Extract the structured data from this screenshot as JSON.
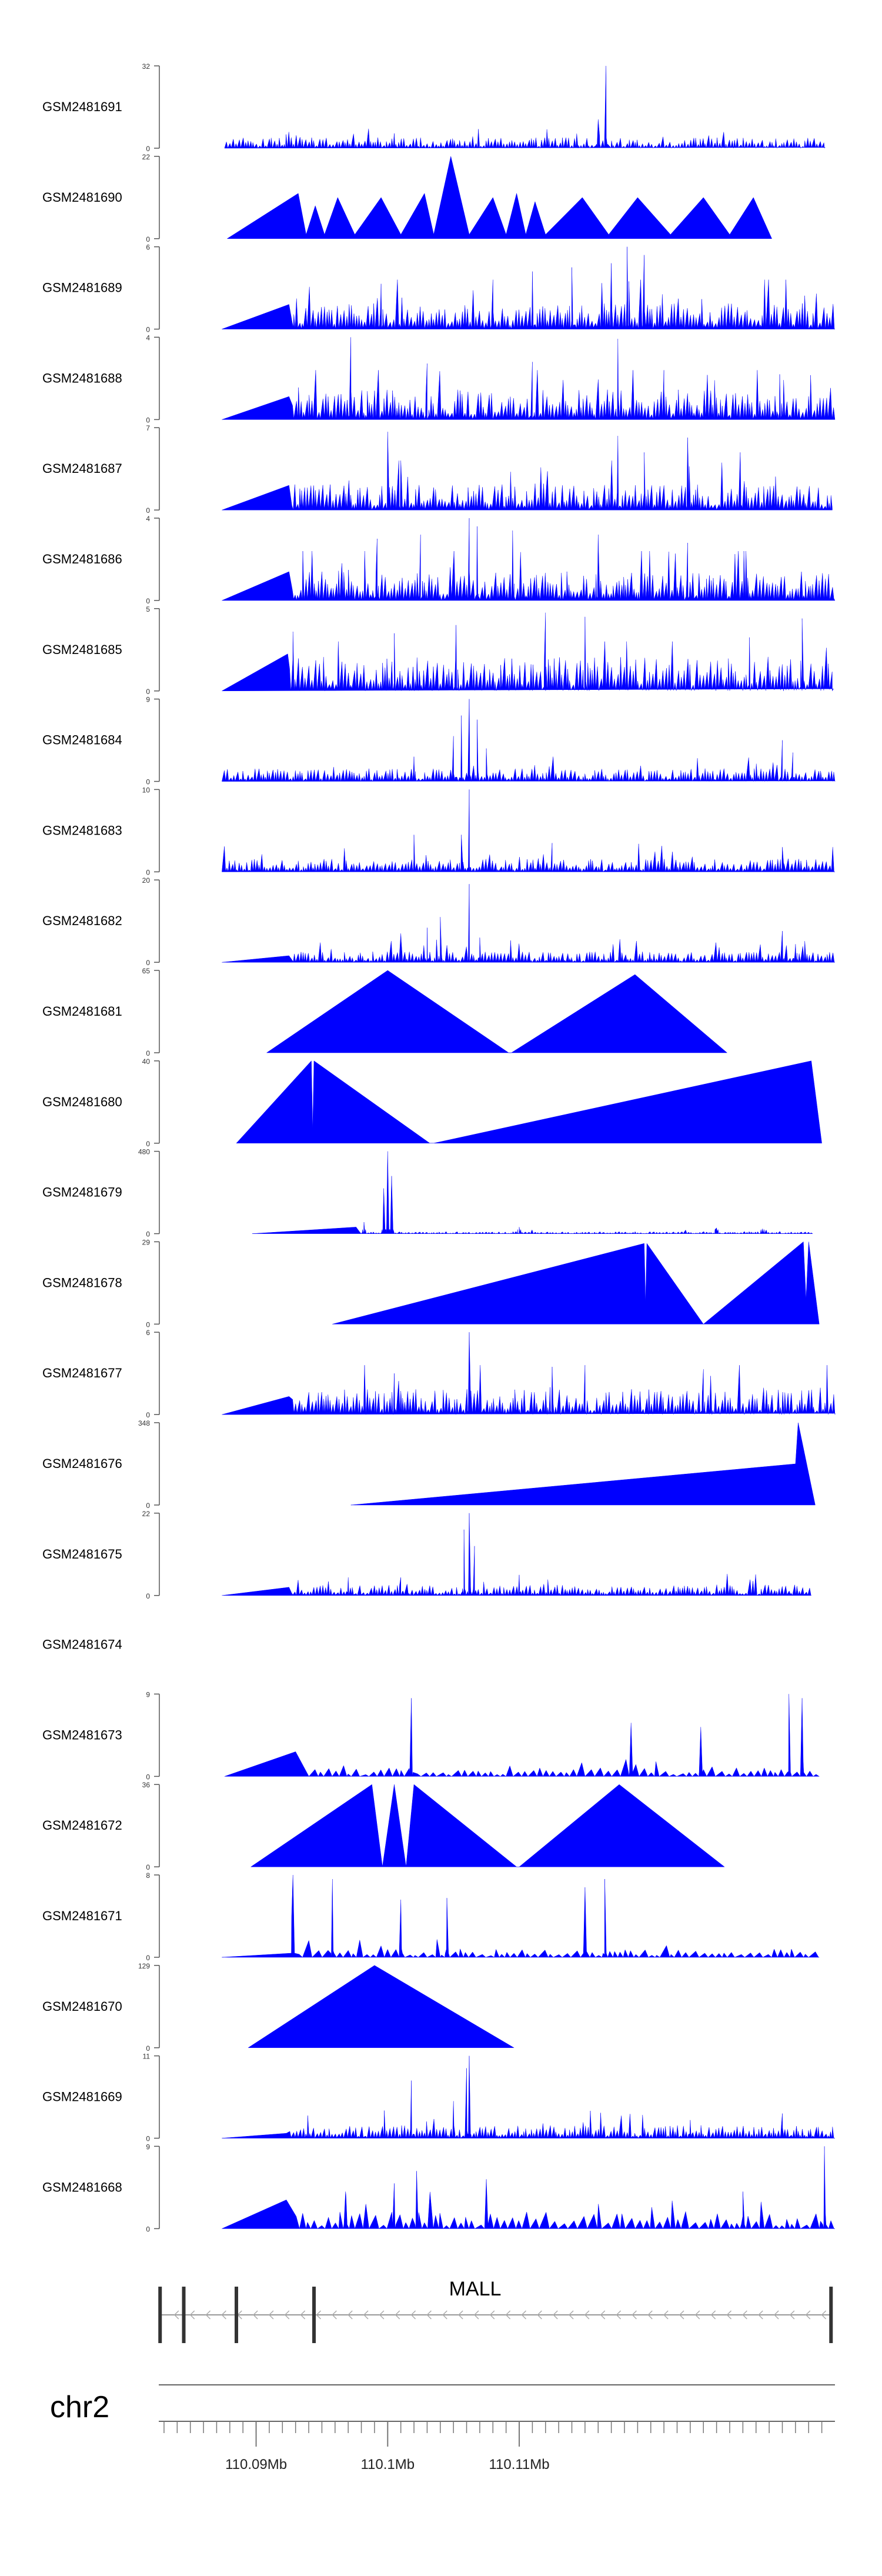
{
  "chart_data": {
    "type": "area",
    "title": "",
    "xlabel": "",
    "x_range_mb": [
      110.0826,
      110.134
    ],
    "axis": {
      "chromosome": "chr2",
      "ticks": [
        {
          "pos": 110.09,
          "label": "110.09Mb"
        },
        {
          "pos": 110.1,
          "label": "110.1Mb"
        },
        {
          "pos": 110.11,
          "label": "110.11Mb"
        }
      ],
      "minor_ticks": [
        110.083,
        110.084,
        110.085,
        110.086,
        110.087,
        110.088,
        110.089,
        110.09,
        110.091,
        110.092,
        110.093,
        110.094,
        110.095,
        110.096,
        110.097,
        110.098,
        110.099,
        110.1,
        110.101,
        110.102,
        110.103,
        110.104,
        110.105,
        110.106,
        110.107,
        110.108,
        110.109,
        110.11,
        110.111,
        110.112,
        110.113,
        110.114,
        110.115,
        110.116,
        110.117,
        110.118,
        110.119,
        110.12,
        110.121,
        110.122,
        110.123,
        110.124,
        110.125,
        110.126,
        110.127,
        110.128,
        110.129,
        110.13,
        110.131,
        110.132,
        110.133
      ]
    },
    "gene": {
      "name": "MALL",
      "strand": "-",
      "start": 110.0826,
      "end": 110.1338,
      "exons": [
        110.0827,
        110.0845,
        110.0885,
        110.0944,
        110.1337
      ]
    },
    "series": [
      {
        "name": "GSM2481691",
        "ymax": 32,
        "ymin": 0,
        "kind": "dense",
        "start": 110.0876,
        "end": 110.1332,
        "baseline": 0.05,
        "spikes": [
          {
            "x": 110.1166,
            "h": 1.0
          },
          {
            "x": 110.116,
            "h": 0.35
          },
          {
            "x": 110.1005,
            "h": 0.18
          }
        ]
      },
      {
        "name": "GSM2481690",
        "ymax": 22,
        "ymin": 0,
        "kind": "sparse",
        "points": [
          [
            110.0878,
            0
          ],
          [
            110.0932,
            0.55
          ],
          [
            110.0938,
            0.05
          ],
          [
            110.0945,
            0.4
          ],
          [
            110.0952,
            0.05
          ],
          [
            110.0962,
            0.5
          ],
          [
            110.0975,
            0.05
          ],
          [
            110.0995,
            0.5
          ],
          [
            110.101,
            0.05
          ],
          [
            110.1028,
            0.55
          ],
          [
            110.1035,
            0.05
          ],
          [
            110.1048,
            1.0
          ],
          [
            110.1062,
            0.05
          ],
          [
            110.108,
            0.5
          ],
          [
            110.109,
            0.05
          ],
          [
            110.1098,
            0.55
          ],
          [
            110.1105,
            0.05
          ],
          [
            110.1112,
            0.45
          ],
          [
            110.112,
            0.05
          ],
          [
            110.1148,
            0.5
          ],
          [
            110.1168,
            0.05
          ],
          [
            110.119,
            0.5
          ],
          [
            110.1215,
            0.05
          ],
          [
            110.124,
            0.5
          ],
          [
            110.126,
            0.05
          ],
          [
            110.1278,
            0.5
          ],
          [
            110.1292,
            0
          ]
        ]
      },
      {
        "name": "GSM2481689",
        "ymax": 6,
        "ymin": 0,
        "kind": "dense",
        "start": 110.0874,
        "end": 110.134,
        "ramp_end": 110.0925,
        "ramp_h": 0.3,
        "baseline": 0.12,
        "spikes": [
          {
            "x": 110.1182,
            "h": 1.0
          },
          {
            "x": 110.1195,
            "h": 0.9
          },
          {
            "x": 110.117,
            "h": 0.8
          },
          {
            "x": 110.114,
            "h": 0.75
          },
          {
            "x": 110.111,
            "h": 0.7
          },
          {
            "x": 110.108,
            "h": 0.6
          },
          {
            "x": 110.0995,
            "h": 0.55
          }
        ]
      },
      {
        "name": "GSM2481688",
        "ymax": 4,
        "ymin": 0,
        "kind": "dense",
        "start": 110.0874,
        "end": 110.134,
        "ramp_end": 110.0925,
        "ramp_h": 0.28,
        "baseline": 0.14,
        "spikes": [
          {
            "x": 110.0972,
            "h": 1.0
          },
          {
            "x": 110.1175,
            "h": 0.98
          },
          {
            "x": 110.111,
            "h": 0.7
          },
          {
            "x": 110.103,
            "h": 0.68
          },
          {
            "x": 110.121,
            "h": 0.6
          },
          {
            "x": 110.1298,
            "h": 0.55
          }
        ]
      },
      {
        "name": "GSM2481687",
        "ymax": 7,
        "ymin": 0,
        "kind": "dense",
        "start": 110.0874,
        "end": 110.1338,
        "ramp_end": 110.0925,
        "ramp_h": 0.3,
        "baseline": 0.12,
        "spikes": [
          {
            "x": 110.1,
            "h": 0.95
          },
          {
            "x": 110.1175,
            "h": 0.9
          },
          {
            "x": 110.1228,
            "h": 0.88
          },
          {
            "x": 110.1195,
            "h": 0.7
          },
          {
            "x": 110.1268,
            "h": 0.7
          },
          {
            "x": 110.101,
            "h": 0.6
          }
        ]
      },
      {
        "name": "GSM2481686",
        "ymax": 4,
        "ymin": 0,
        "kind": "dense",
        "start": 110.0874,
        "end": 110.134,
        "ramp_end": 110.0925,
        "ramp_h": 0.35,
        "baseline": 0.14,
        "spikes": [
          {
            "x": 110.1062,
            "h": 1.0
          },
          {
            "x": 110.1068,
            "h": 0.9
          },
          {
            "x": 110.1095,
            "h": 0.85
          },
          {
            "x": 110.116,
            "h": 0.8
          },
          {
            "x": 110.1025,
            "h": 0.8
          },
          {
            "x": 110.0992,
            "h": 0.75
          },
          {
            "x": 110.1228,
            "h": 0.7
          }
        ]
      },
      {
        "name": "GSM2481685",
        "ymax": 5,
        "ymin": 0,
        "kind": "dense",
        "start": 110.0874,
        "end": 110.1338,
        "ramp_end": 110.0924,
        "ramp_h": 0.45,
        "baseline": 0.16,
        "spikes": [
          {
            "x": 110.112,
            "h": 0.95
          },
          {
            "x": 110.115,
            "h": 0.9
          },
          {
            "x": 110.1315,
            "h": 0.88
          },
          {
            "x": 110.1052,
            "h": 0.8
          },
          {
            "x": 110.0928,
            "h": 0.72
          },
          {
            "x": 110.1005,
            "h": 0.7
          },
          {
            "x": 110.1275,
            "h": 0.65
          }
        ]
      },
      {
        "name": "GSM2481684",
        "ymax": 9,
        "ymin": 0,
        "kind": "dense",
        "start": 110.0874,
        "end": 110.134,
        "baseline": 0.06,
        "spikes": [
          {
            "x": 110.1062,
            "h": 1.0
          },
          {
            "x": 110.1056,
            "h": 0.8
          },
          {
            "x": 110.1068,
            "h": 0.75
          },
          {
            "x": 110.105,
            "h": 0.55
          },
          {
            "x": 110.1075,
            "h": 0.4
          },
          {
            "x": 110.13,
            "h": 0.5
          },
          {
            "x": 110.1308,
            "h": 0.35
          },
          {
            "x": 110.102,
            "h": 0.3
          }
        ]
      },
      {
        "name": "GSM2481683",
        "ymax": 10,
        "ymin": 0,
        "kind": "dense",
        "start": 110.0874,
        "end": 110.134,
        "baseline": 0.06,
        "spikes": [
          {
            "x": 110.1062,
            "h": 1.0
          },
          {
            "x": 110.102,
            "h": 0.45
          },
          {
            "x": 110.1056,
            "h": 0.45
          },
          {
            "x": 110.1125,
            "h": 0.35
          },
          {
            "x": 110.13,
            "h": 0.3
          }
        ]
      },
      {
        "name": "GSM2481682",
        "ymax": 20,
        "ymin": 0,
        "kind": "dense",
        "start": 110.0874,
        "end": 110.134,
        "ramp_end": 110.0925,
        "ramp_h": 0.08,
        "baseline": 0.05,
        "spikes": [
          {
            "x": 110.1062,
            "h": 0.95
          },
          {
            "x": 110.104,
            "h": 0.55
          },
          {
            "x": 110.103,
            "h": 0.42
          },
          {
            "x": 110.101,
            "h": 0.35
          },
          {
            "x": 110.107,
            "h": 0.3
          },
          {
            "x": 110.13,
            "h": 0.38
          },
          {
            "x": 110.131,
            "h": 0.22
          }
        ]
      },
      {
        "name": "GSM2481681",
        "ymax": 65,
        "ymin": 0,
        "kind": "sparse",
        "points": [
          [
            110.0908,
            0
          ],
          [
            110.1,
            1.0
          ],
          [
            110.1092,
            0
          ],
          [
            110.1094,
            0
          ],
          [
            110.1188,
            0.95
          ],
          [
            110.1258,
            0
          ]
        ]
      },
      {
        "name": "GSM2481680",
        "ymax": 40,
        "ymin": 0,
        "kind": "sparse",
        "points": [
          [
            110.0885,
            0
          ],
          [
            110.0942,
            1.0
          ],
          [
            110.0943,
            0.15
          ],
          [
            110.0944,
            1.0
          ],
          [
            110.1032,
            0
          ],
          [
            110.1035,
            0
          ],
          [
            110.1322,
            1.0
          ],
          [
            110.133,
            0
          ]
        ]
      },
      {
        "name": "GSM2481679",
        "ymax": 480,
        "ymin": 0,
        "kind": "dense",
        "start": 110.0897,
        "end": 110.1323,
        "ramp_end": 110.0976,
        "ramp_h": 0.08,
        "baseline": 0.01,
        "spikes": [
          {
            "x": 110.1,
            "h": 1.0
          },
          {
            "x": 110.1003,
            "h": 0.7
          },
          {
            "x": 110.0997,
            "h": 0.55
          },
          {
            "x": 110.0982,
            "h": 0.14
          },
          {
            "x": 110.11,
            "h": 0.08
          },
          {
            "x": 110.125,
            "h": 0.07
          },
          {
            "x": 110.1285,
            "h": 0.06
          }
        ]
      },
      {
        "name": "GSM2481678",
        "ymax": 29,
        "ymin": 0,
        "kind": "sparse",
        "points": [
          [
            110.0958,
            0
          ],
          [
            110.1195,
            0.98
          ],
          [
            110.1196,
            0.25
          ],
          [
            110.1197,
            0.98
          ],
          [
            110.124,
            0
          ],
          [
            110.1316,
            1.0
          ],
          [
            110.1318,
            0.3
          ],
          [
            110.132,
            1.0
          ],
          [
            110.1328,
            0
          ]
        ]
      },
      {
        "name": "GSM2481677",
        "ymax": 6,
        "ymin": 0,
        "kind": "dense",
        "start": 110.0874,
        "end": 110.134,
        "ramp_end": 110.0925,
        "ramp_h": 0.22,
        "baseline": 0.12,
        "spikes": [
          {
            "x": 110.1062,
            "h": 1.0
          },
          {
            "x": 110.115,
            "h": 0.6
          },
          {
            "x": 110.1125,
            "h": 0.58
          },
          {
            "x": 110.124,
            "h": 0.55
          },
          {
            "x": 110.1005,
            "h": 0.5
          }
        ]
      },
      {
        "name": "GSM2481676",
        "ymax": 348,
        "ymin": 0,
        "kind": "sparse",
        "points": [
          [
            110.0972,
            0
          ],
          [
            110.131,
            0.5
          ],
          [
            110.1312,
            1.0
          ],
          [
            110.1325,
            0
          ]
        ]
      },
      {
        "name": "GSM2481675",
        "ymax": 22,
        "ymin": 0,
        "kind": "dense",
        "start": 110.0874,
        "end": 110.1322,
        "ramp_end": 110.0925,
        "ramp_h": 0.1,
        "baseline": 0.05,
        "spikes": [
          {
            "x": 110.1062,
            "h": 1.0
          },
          {
            "x": 110.1058,
            "h": 0.8
          },
          {
            "x": 110.1066,
            "h": 0.6
          },
          {
            "x": 110.11,
            "h": 0.25
          },
          {
            "x": 110.097,
            "h": 0.22
          },
          {
            "x": 110.101,
            "h": 0.22
          }
        ]
      },
      {
        "name": "GSM2481674",
        "ymax": null,
        "ymin": null,
        "kind": "empty"
      },
      {
        "name": "GSM2481673",
        "ymax": 9,
        "ymin": 0,
        "kind": "sparse_spiky",
        "start": 110.0876,
        "end": 110.1328,
        "ramp_end": 110.093,
        "ramp_h": 0.3,
        "baseline": 0.02,
        "spikes": [
          {
            "x": 110.1018,
            "h": 0.95
          },
          {
            "x": 110.1305,
            "h": 1.0
          },
          {
            "x": 110.1315,
            "h": 0.95
          },
          {
            "x": 110.1185,
            "h": 0.65
          },
          {
            "x": 110.1238,
            "h": 0.6
          }
        ]
      },
      {
        "name": "GSM2481672",
        "ymax": 36,
        "ymin": 0,
        "kind": "sparse",
        "points": [
          [
            110.0896,
            0
          ],
          [
            110.0988,
            1.0
          ],
          [
            110.0996,
            0
          ],
          [
            110.1005,
            1.0
          ],
          [
            110.1014,
            0
          ],
          [
            110.102,
            1.0
          ],
          [
            110.1098,
            0
          ],
          [
            110.11,
            0
          ],
          [
            110.1176,
            1.0
          ],
          [
            110.1256,
            0
          ]
        ]
      },
      {
        "name": "GSM2481671",
        "ymax": 8,
        "ymin": 0,
        "kind": "sparse_spiky",
        "start": 110.0874,
        "end": 110.1328,
        "ramp_end": 110.0927,
        "ramp_h": 0.5,
        "baseline": 0.02,
        "spikes": [
          {
            "x": 110.0928,
            "h": 1.0
          },
          {
            "x": 110.0958,
            "h": 0.95
          },
          {
            "x": 110.1165,
            "h": 0.95
          },
          {
            "x": 110.115,
            "h": 0.85
          },
          {
            "x": 110.101,
            "h": 0.7
          },
          {
            "x": 110.1045,
            "h": 0.72
          }
        ]
      },
      {
        "name": "GSM2481670",
        "ymax": 129,
        "ymin": 0,
        "kind": "sparse",
        "points": [
          [
            110.0894,
            0
          ],
          [
            110.099,
            1.0
          ],
          [
            110.1096,
            0
          ]
        ]
      },
      {
        "name": "GSM2481669",
        "ymax": 11,
        "ymin": 0,
        "kind": "dense",
        "start": 110.0874,
        "end": 110.134,
        "ramp_end": 110.0923,
        "ramp_h": 0.06,
        "baseline": 0.06,
        "spikes": [
          {
            "x": 110.1062,
            "h": 1.0
          },
          {
            "x": 110.106,
            "h": 0.85
          },
          {
            "x": 110.1018,
            "h": 0.7
          },
          {
            "x": 110.105,
            "h": 0.45
          },
          {
            "x": 110.13,
            "h": 0.3
          },
          {
            "x": 110.123,
            "h": 0.22
          }
        ]
      },
      {
        "name": "GSM2481668",
        "ymax": 9,
        "ymin": 0,
        "kind": "sparse_spiky",
        "start": 110.0874,
        "end": 110.134,
        "ramp_end": 110.0923,
        "ramp_h": 0.35,
        "baseline": 0.04,
        "spikes": [
          {
            "x": 110.1332,
            "h": 1.0
          },
          {
            "x": 110.1022,
            "h": 0.7
          },
          {
            "x": 110.1075,
            "h": 0.6
          },
          {
            "x": 110.1005,
            "h": 0.55
          },
          {
            "x": 110.127,
            "h": 0.45
          },
          {
            "x": 110.0968,
            "h": 0.45
          }
        ]
      }
    ]
  },
  "style": {
    "fill_color": "#0000ff",
    "axis_color": "#555555",
    "gene_color": "#333333",
    "background": "#ffffff"
  }
}
